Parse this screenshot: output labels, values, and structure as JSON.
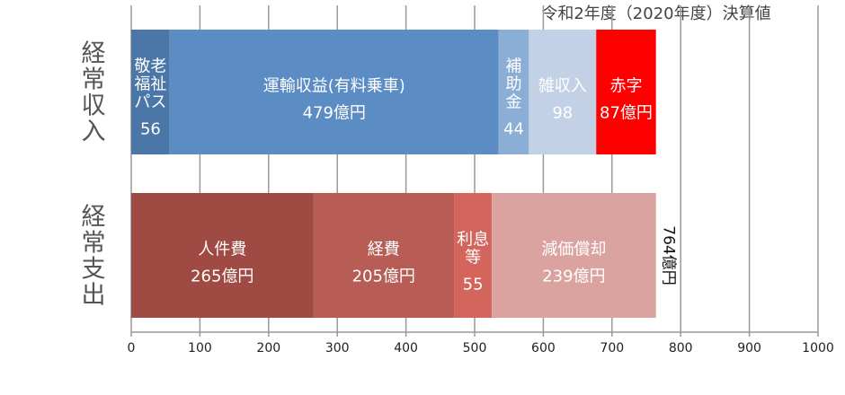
{
  "chart_data": {
    "type": "stacked-bar-horizontal",
    "title": "令和2年度（2020年度）決算値",
    "categories": [
      "経常収入",
      "経常支出"
    ],
    "stacks": [
      [
        {
          "name": "敬老福祉パス",
          "color": "#4a76a8",
          "value": 56
        },
        {
          "name": "運輸収益(有料乗車)",
          "color": "#5b8cc4",
          "value": 479,
          "value_label": "479億円"
        },
        {
          "name": "補助金",
          "color": "#8aaed6",
          "value": 44
        },
        {
          "name": "雑収入",
          "color": "#c3d1e6",
          "value": 98
        },
        {
          "name": "赤字",
          "color": "#ff0000",
          "value": 87,
          "value_label": "87億円"
        }
      ],
      [
        {
          "name": "人件費",
          "color": "#a04a44",
          "value": 265,
          "value_label": "265億円"
        },
        {
          "name": "経費",
          "color": "#b85c56",
          "value": 205,
          "value_label": "205億円"
        },
        {
          "name": "利息等",
          "color": "#d4655c",
          "value": 55
        },
        {
          "name": "減価償却",
          "color": "#dba3a0",
          "value": 239,
          "value_label": "239億円"
        }
      ]
    ],
    "total": {
      "value": 764,
      "label": "764億円"
    },
    "xlim": [
      0,
      1000
    ],
    "xticks": [
      0,
      100,
      200,
      300,
      400,
      500,
      600,
      700,
      800,
      900,
      1000
    ],
    "grid": true
  }
}
